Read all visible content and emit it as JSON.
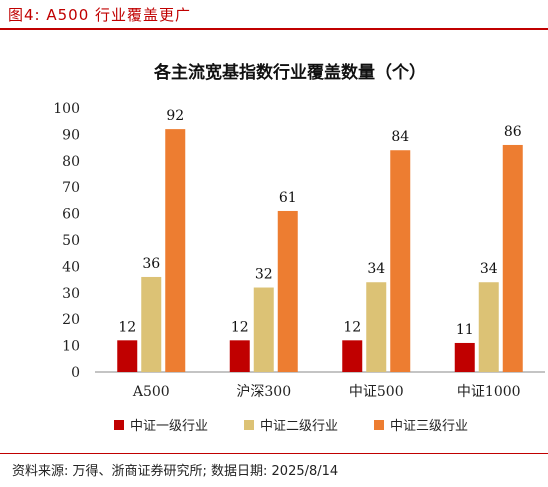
{
  "header": {
    "figure_label": "图4:   A500 行业覆盖更广"
  },
  "source": "资料来源:  万得、浙商证券研究所;  数据日期:  2025/8/14",
  "colors": {
    "accent": "#c00000"
  },
  "chart_data": {
    "type": "bar",
    "title": "各主流宽基指数行业覆盖数量（个）",
    "categories": [
      "A500",
      "沪深300",
      "中证500",
      "中证1000"
    ],
    "series": [
      {
        "name": "中证一级行业",
        "values": [
          12,
          12,
          12,
          11
        ],
        "color": "#c00000"
      },
      {
        "name": "中证二级行业",
        "values": [
          36,
          32,
          34,
          34
        ],
        "color": "#dcc275"
      },
      {
        "name": "中证三级行业",
        "values": [
          92,
          61,
          84,
          86
        ],
        "color": "#ed7d31"
      }
    ],
    "ylim": [
      0,
      100
    ],
    "yticks": [
      0,
      10,
      20,
      30,
      40,
      50,
      60,
      70,
      80,
      90,
      100
    ],
    "grid": false,
    "legend": "bottom"
  }
}
